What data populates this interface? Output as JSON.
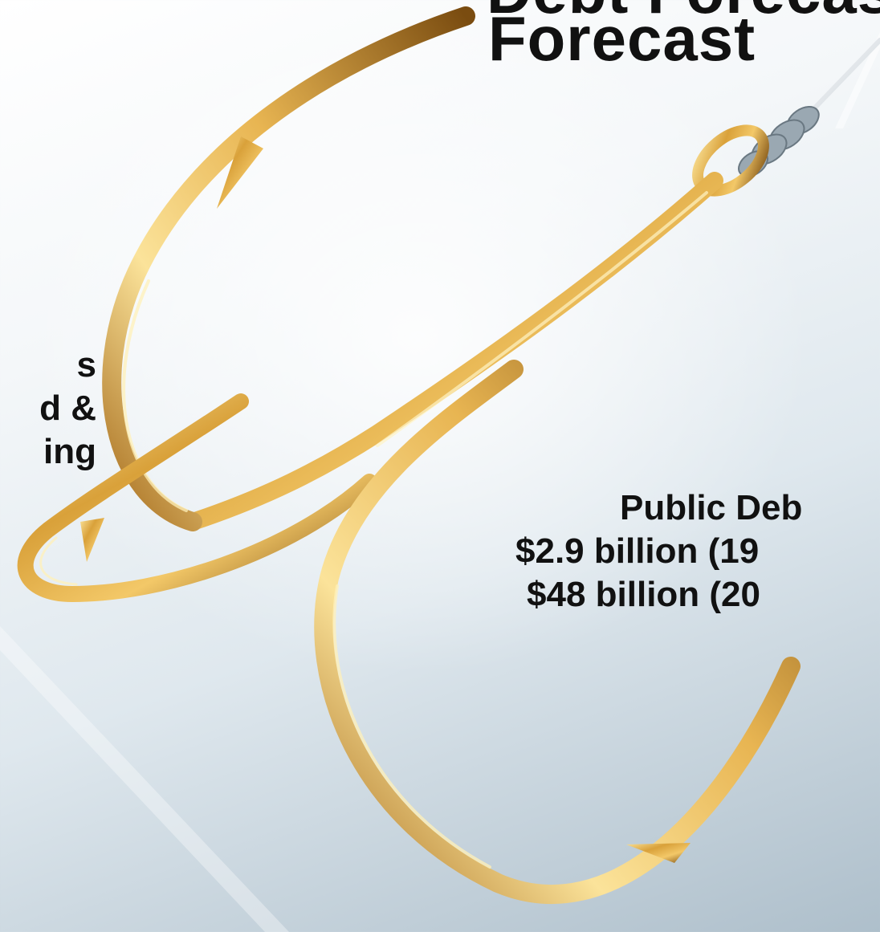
{
  "header": {
    "title_partial_top": "Debt Forecast",
    "title": "Forecast"
  },
  "left_text": {
    "lines": [
      "s",
      "d &",
      "ing"
    ]
  },
  "debt_info": {
    "label": "Public Deb",
    "line_1": "$2.9 billion (19",
    "line_2": "$48 billion (20"
  },
  "image": {
    "subject": "golden-double-fishing-hook-icon"
  },
  "colors": {
    "gold_light": "#fbe39a",
    "gold_mid": "#d9a13a",
    "gold_dark": "#7a4c10",
    "text": "#111111",
    "background_light": "#f4f7f9",
    "background_dark": "#aebfcb"
  }
}
